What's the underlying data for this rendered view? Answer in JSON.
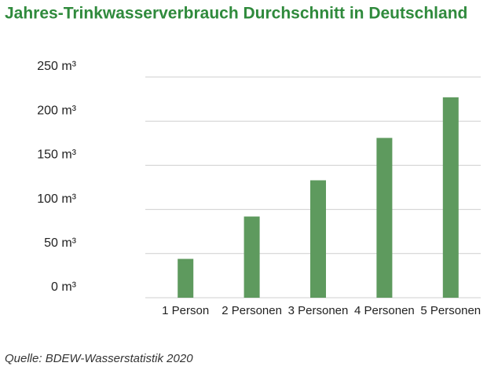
{
  "chart_data": {
    "type": "bar",
    "title": "Jahres-Trinkwasserverbrauch Durchschnitt in Deutschland",
    "source": "Quelle: BDEW-Wasserstatistik 2020",
    "categories": [
      "1 Person",
      "2 Personen",
      "3 Personen",
      "4 Personen",
      "5 Personen"
    ],
    "values": [
      44,
      92,
      133,
      181,
      227
    ],
    "color": "#5e9a5e",
    "ylim": [
      0,
      250
    ],
    "yticks": [
      {
        "value": 0,
        "label": "0 m³"
      },
      {
        "value": 50,
        "label": "50 m³"
      },
      {
        "value": 100,
        "label": "100 m³"
      },
      {
        "value": 150,
        "label": "150 m³"
      },
      {
        "value": 200,
        "label": "200 m³"
      },
      {
        "value": 250,
        "label": "250 m³"
      }
    ],
    "grid": true
  }
}
